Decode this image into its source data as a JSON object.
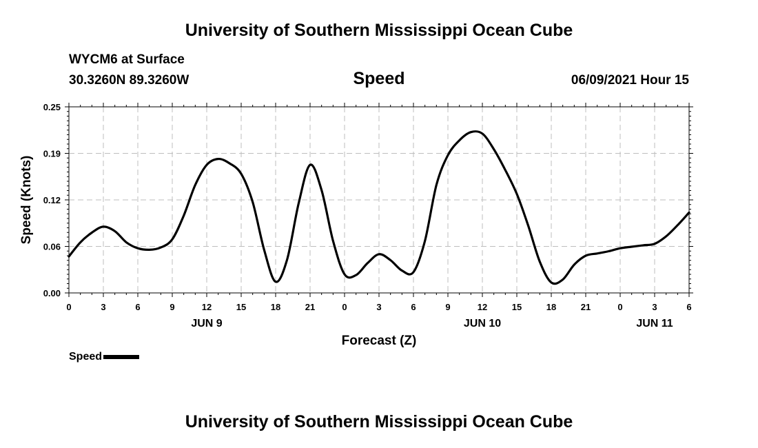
{
  "header": {
    "title": "University of Southern Mississippi Ocean Cube",
    "station": "WYCM6 at Surface",
    "coords": "30.3260N  89.3260W",
    "variable": "Speed",
    "datetime": "06/09/2021 Hour 15"
  },
  "footer": {
    "title": "University of Southern Mississippi Ocean Cube"
  },
  "legend": {
    "label": "Speed",
    "color": "#000000"
  },
  "chart_data": {
    "type": "line",
    "title": "Speed",
    "xlabel": "Forecast (Z)",
    "ylabel": "Speed (Knots)",
    "ylim": [
      0.0,
      0.25
    ],
    "xlim": [
      "2021-06-09 00Z",
      "2021-06-11 06Z"
    ],
    "y_ticks": [
      "0.00",
      "0.06",
      "0.12",
      "0.19",
      "0.25"
    ],
    "x_ticks": [
      "0",
      "3",
      "6",
      "9",
      "12",
      "15",
      "18",
      "21",
      "0",
      "3",
      "6",
      "9",
      "12",
      "15",
      "18",
      "21",
      "0",
      "3",
      "6"
    ],
    "day_labels": [
      {
        "label": "JUN 9",
        "at": "2021-06-09 12Z"
      },
      {
        "label": "JUN 10",
        "at": "2021-06-10 12Z"
      },
      {
        "label": "JUN 11",
        "at": "2021-06-11 03Z"
      }
    ],
    "grid": true,
    "legend_position": "bottom-left",
    "series": [
      {
        "name": "Speed",
        "color": "#000000",
        "points": [
          [
            "2021-06-09 00Z",
            0.049
          ],
          [
            "2021-06-09 01Z",
            0.068
          ],
          [
            "2021-06-09 02Z",
            0.081
          ],
          [
            "2021-06-09 03Z",
            0.089
          ],
          [
            "2021-06-09 04Z",
            0.083
          ],
          [
            "2021-06-09 05Z",
            0.068
          ],
          [
            "2021-06-09 06Z",
            0.06
          ],
          [
            "2021-06-09 07Z",
            0.058
          ],
          [
            "2021-06-09 08Z",
            0.061
          ],
          [
            "2021-06-09 09Z",
            0.072
          ],
          [
            "2021-06-09 10Z",
            0.104
          ],
          [
            "2021-06-09 11Z",
            0.145
          ],
          [
            "2021-06-09 12Z",
            0.172
          ],
          [
            "2021-06-09 13Z",
            0.18
          ],
          [
            "2021-06-09 14Z",
            0.174
          ],
          [
            "2021-06-09 15Z",
            0.16
          ],
          [
            "2021-06-09 16Z",
            0.122
          ],
          [
            "2021-06-09 17Z",
            0.058
          ],
          [
            "2021-06-09 18Z",
            0.015
          ],
          [
            "2021-06-09 19Z",
            0.045
          ],
          [
            "2021-06-09 20Z",
            0.12
          ],
          [
            "2021-06-09 21Z",
            0.172
          ],
          [
            "2021-06-09 22Z",
            0.138
          ],
          [
            "2021-06-09 23Z",
            0.07
          ],
          [
            "2021-06-10 00Z",
            0.025
          ],
          [
            "2021-06-10 01Z",
            0.024
          ],
          [
            "2021-06-10 02Z",
            0.04
          ],
          [
            "2021-06-10 03Z",
            0.052
          ],
          [
            "2021-06-10 04Z",
            0.044
          ],
          [
            "2021-06-10 05Z",
            0.03
          ],
          [
            "2021-06-10 06Z",
            0.028
          ],
          [
            "2021-06-10 07Z",
            0.07
          ],
          [
            "2021-06-10 08Z",
            0.145
          ],
          [
            "2021-06-10 09Z",
            0.185
          ],
          [
            "2021-06-10 10Z",
            0.205
          ],
          [
            "2021-06-10 11Z",
            0.216
          ],
          [
            "2021-06-10 12Z",
            0.214
          ],
          [
            "2021-06-10 13Z",
            0.193
          ],
          [
            "2021-06-10 14Z",
            0.165
          ],
          [
            "2021-06-10 15Z",
            0.133
          ],
          [
            "2021-06-10 16Z",
            0.09
          ],
          [
            "2021-06-10 17Z",
            0.042
          ],
          [
            "2021-06-10 18Z",
            0.014
          ],
          [
            "2021-06-10 19Z",
            0.018
          ],
          [
            "2021-06-10 20Z",
            0.038
          ],
          [
            "2021-06-10 21Z",
            0.05
          ],
          [
            "2021-06-10 22Z",
            0.053
          ],
          [
            "2021-06-10 23Z",
            0.056
          ],
          [
            "2021-06-11 00Z",
            0.06
          ],
          [
            "2021-06-11 01Z",
            0.062
          ],
          [
            "2021-06-11 02Z",
            0.064
          ],
          [
            "2021-06-11 03Z",
            0.066
          ],
          [
            "2021-06-11 04Z",
            0.076
          ],
          [
            "2021-06-11 05Z",
            0.091
          ],
          [
            "2021-06-11 06Z",
            0.108
          ]
        ]
      }
    ]
  }
}
